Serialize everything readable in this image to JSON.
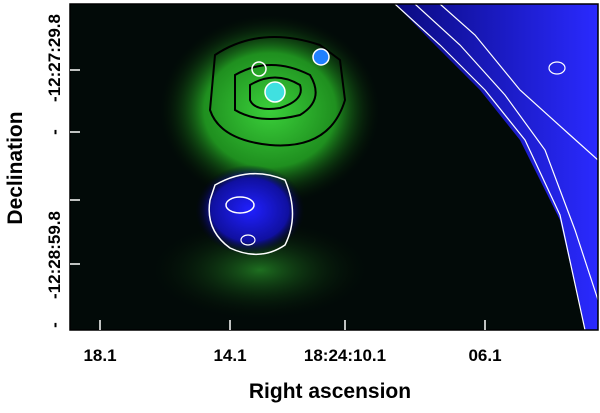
{
  "axes": {
    "x_label": "Right ascension",
    "y_label": "Declination",
    "x_ticks": [
      "18.1",
      "14.1",
      "18:24:10.1",
      "06.1"
    ],
    "y_ticks": [
      "-12:27:29.8",
      "-",
      "-12:28:59.8",
      "-"
    ]
  }
}
